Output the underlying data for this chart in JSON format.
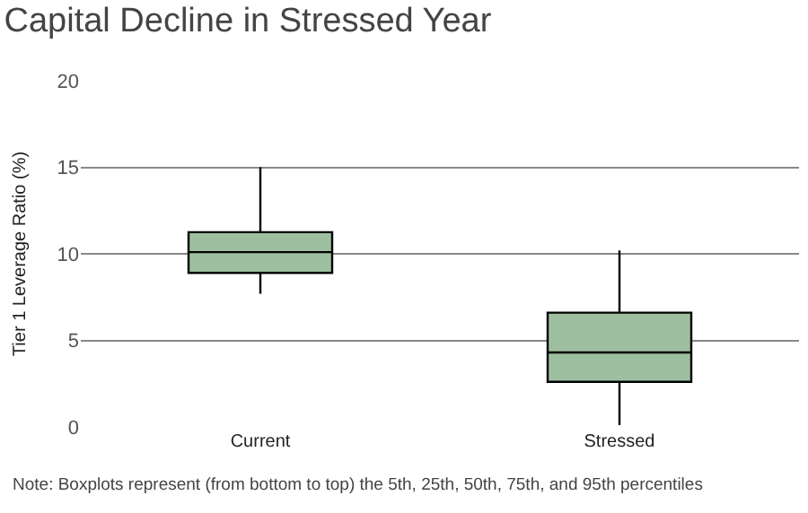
{
  "chart_data": {
    "type": "box",
    "title": "Capital Decline in Stressed Year",
    "ylabel": "Tier 1 Leverage Ratio (%)",
    "categories": [
      "Current",
      "Stressed"
    ],
    "boxes": [
      {
        "low": 7.7,
        "q1": 8.9,
        "median": 10.1,
        "q3": 11.25,
        "high": 15.0
      },
      {
        "low": 0.1,
        "q1": 2.6,
        "median": 4.3,
        "q3": 6.6,
        "high": 10.2
      }
    ],
    "color": "#9dbfa0",
    "ylim": [
      0,
      20
    ],
    "yticks": [
      0,
      5,
      10,
      15,
      20
    ],
    "grid": "y",
    "annotations": [
      "Note: Boxplots represent (from bottom to top) the 5th, 25th, 50th, 75th, and 95th percentiles"
    ]
  }
}
